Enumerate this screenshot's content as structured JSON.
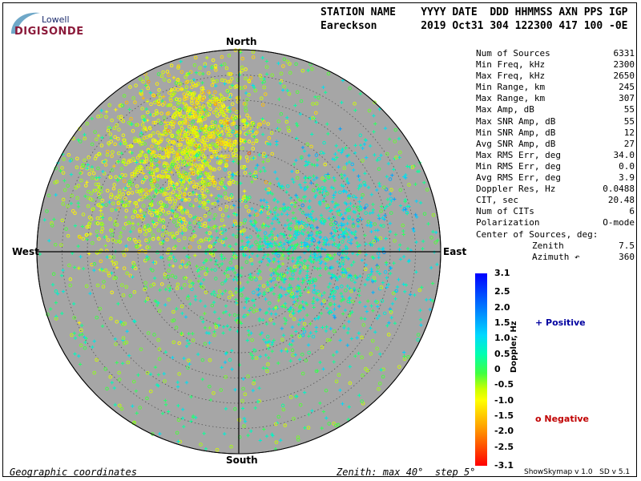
{
  "logo": {
    "top": "Lowell",
    "main": "DIGISONDE"
  },
  "header": {
    "labels": "STATION NAME    YYYY DATE  DDD HHMMSS AXN PPS IGP",
    "values": "Eareckson       2019 Oct31 304 122300 417 100 -0E"
  },
  "compass": {
    "north": "North",
    "south": "South",
    "west": "West",
    "east": "East"
  },
  "stats": [
    {
      "label": "Num of Sources",
      "value": "6331"
    },
    {
      "label": "Min Freq, kHz",
      "value": "2300"
    },
    {
      "label": "Max Freq, kHz",
      "value": "2650"
    },
    {
      "label": "Min Range, km",
      "value": "245"
    },
    {
      "label": "Max Range, km",
      "value": "307"
    },
    {
      "label": "Max Amp, dB",
      "value": "55"
    },
    {
      "label": "Max SNR Amp, dB",
      "value": "55"
    },
    {
      "label": "Min SNR Amp, dB",
      "value": "12"
    },
    {
      "label": "Avg SNR Amp, dB",
      "value": "27"
    },
    {
      "label": "Max RMS Err, deg",
      "value": "34.0"
    },
    {
      "label": "Min RMS Err, deg",
      "value": "0.0"
    },
    {
      "label": "Avg RMS Err, deg",
      "value": "3.9"
    },
    {
      "label": "Doppler Res, Hz",
      "value": "0.0488"
    },
    {
      "label": "CIT, sec",
      "value": "20.48"
    },
    {
      "label": "Num of CITs",
      "value": "6"
    },
    {
      "label": "Polarization",
      "value": "O-mode"
    },
    {
      "label": "Center of Sources, deg:",
      "value": ""
    },
    {
      "label": "Zenith",
      "value": "7.5",
      "indent": true
    },
    {
      "label": "Azimuth ↶",
      "value": "360",
      "indent": true
    }
  ],
  "colorbar": {
    "title": "Doppler, Hz",
    "ticks": [
      "3.1",
      "2.5",
      "2.0",
      "1.5",
      "1.0",
      "0.5",
      "0",
      "-0.5",
      "-1.0",
      "-1.5",
      "-2.0",
      "-2.5",
      "-3.1"
    ]
  },
  "legend": {
    "positive": "+ Positive",
    "negative": "o Negative"
  },
  "footer": {
    "left": "Geographic coordinates",
    "mid": "Zenith: max 40°  step 5°",
    "right": "ShowSkymap v 1.0   SD v 5.1"
  },
  "colors": {
    "disk": "#a6a6a6",
    "positive_label": "#0000a0",
    "negative_label": "#c00000"
  },
  "chart_data": {
    "type": "scatter",
    "projection": "polar skymap",
    "zenith_max_deg": 40,
    "zenith_step_deg": 5,
    "doppler_range_hz": [
      -3.1,
      3.1
    ],
    "clusters": [
      {
        "name": "north-west negative",
        "azimuth_deg": 340,
        "zenith_deg": 25,
        "doppler_hz": -1.0,
        "marker": "o"
      },
      {
        "name": "west negative",
        "azimuth_deg": 300,
        "zenith_deg": 20,
        "doppler_hz": -0.7,
        "marker": "o"
      },
      {
        "name": "east positive",
        "azimuth_deg": 80,
        "zenith_deg": 18,
        "doppler_hz": 0.9,
        "marker": "+"
      },
      {
        "name": "center mixed",
        "azimuth_deg": 120,
        "zenith_deg": 8,
        "doppler_hz": 0.3,
        "marker": "+"
      }
    ],
    "num_sources": 6331
  }
}
